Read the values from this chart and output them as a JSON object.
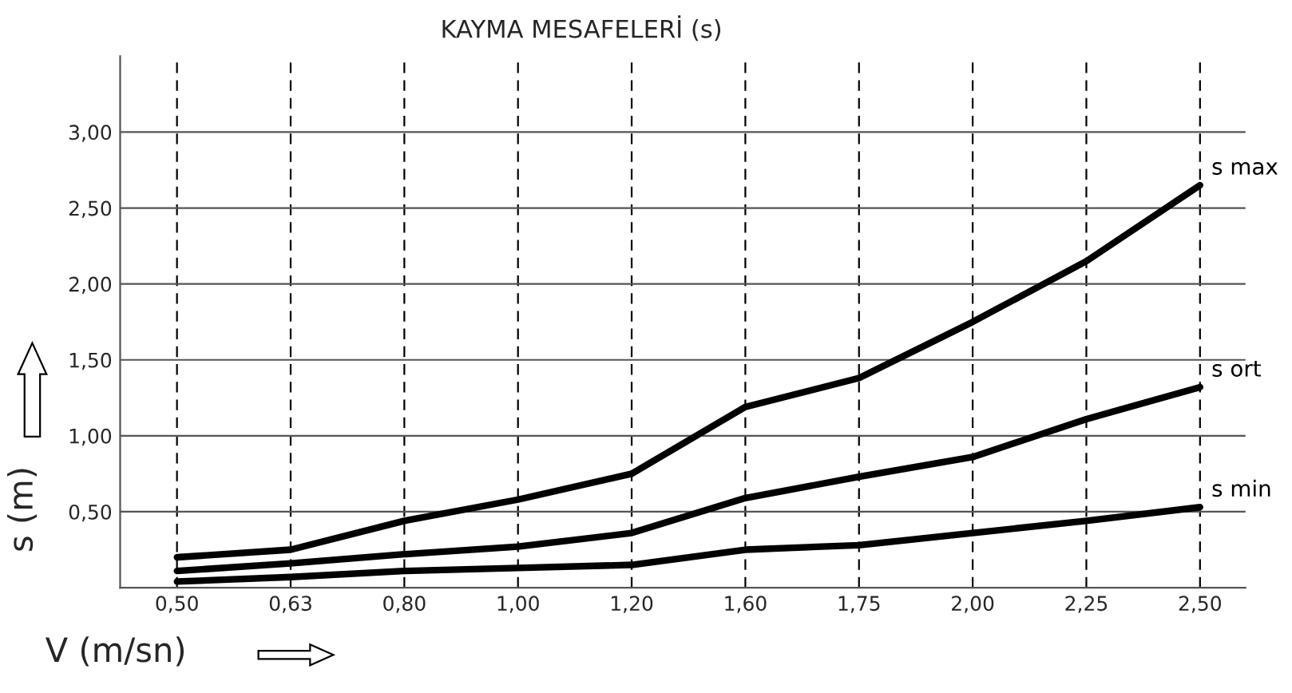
{
  "chart_data": {
    "type": "line",
    "title": "KAYMA MESAFELERİ (s)",
    "xlabel": "V (m/sn)",
    "ylabel": "s (m)",
    "categories": [
      "0,50",
      "0,63",
      "0,80",
      "1,00",
      "1,20",
      "1,60",
      "1,75",
      "2,00",
      "2,25",
      "2,50"
    ],
    "series": [
      {
        "name": "s max",
        "color": "#000000",
        "values": [
          0.2,
          0.25,
          0.44,
          0.58,
          0.75,
          1.19,
          1.38,
          1.75,
          2.15,
          2.65
        ]
      },
      {
        "name": "s ort",
        "color": "#000000",
        "values": [
          0.11,
          0.16,
          0.22,
          0.27,
          0.36,
          0.59,
          0.73,
          0.86,
          1.11,
          1.32
        ]
      },
      {
        "name": "s min",
        "color": "#000000",
        "values": [
          0.04,
          0.07,
          0.11,
          0.13,
          0.15,
          0.25,
          0.28,
          0.36,
          0.44,
          0.53
        ]
      }
    ],
    "ylim": [
      0,
      3.5
    ],
    "yticks": [
      {
        "value": 0.5,
        "label": "0,50"
      },
      {
        "value": 1.0,
        "label": "1,00"
      },
      {
        "value": 1.5,
        "label": "1,50"
      },
      {
        "value": 2.0,
        "label": "2,00"
      },
      {
        "value": 2.5,
        "label": "2,50"
      },
      {
        "value": 3.0,
        "label": "3,00"
      }
    ],
    "grid": true,
    "legend": false,
    "marker": "none",
    "line_style": "solid"
  }
}
